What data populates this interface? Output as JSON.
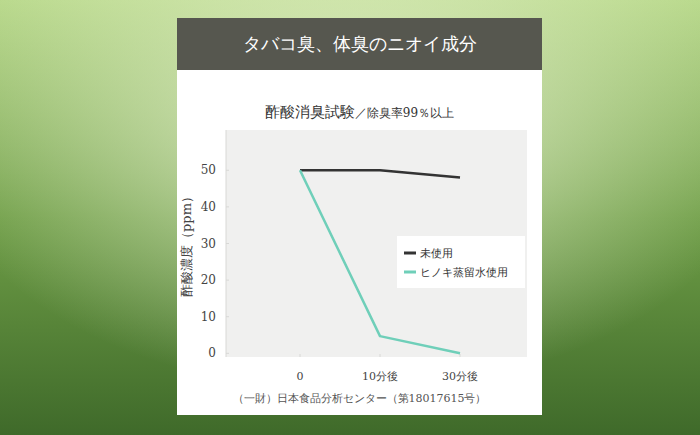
{
  "chart_data": {
    "type": "line",
    "title": "タバコ臭、体臭のニオイ成分",
    "subtitle": "酢酸消臭試験",
    "annotations": [
      "／除臭率99％以上",
      "（一財）日本食品分析センター（第18017615号）"
    ],
    "y_label": "酢酸濃度（ppm）",
    "categories": [
      "0",
      "10分後",
      "30分後"
    ],
    "series": [
      {
        "name": "未使用",
        "color": "#333333",
        "values": [
          50,
          50,
          48
        ]
      },
      {
        "name": "ヒノキ蒸留水使用",
        "color": "#6fcfb9",
        "values": [
          50,
          4.7,
          0
        ]
      }
    ],
    "ylim": [
      -1,
      61
    ],
    "yticks": [
      0,
      10,
      20,
      30,
      40,
      50
    ],
    "grid": false,
    "legend": "right"
  }
}
